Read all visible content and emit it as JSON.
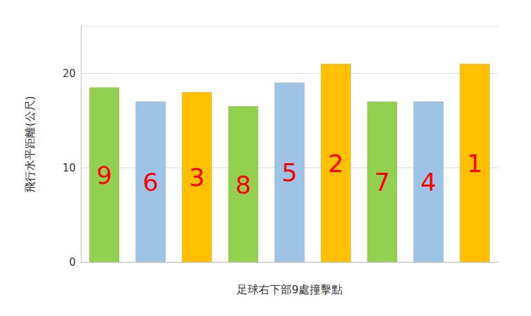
{
  "chart_data": {
    "type": "bar",
    "categories": [
      "9",
      "6",
      "3",
      "8",
      "5",
      "2",
      "7",
      "4",
      "1"
    ],
    "values": [
      18.5,
      17,
      18,
      16.5,
      19,
      21,
      17,
      17,
      21
    ],
    "colors": [
      "#92d050",
      "#9dc3e6",
      "#ffc000",
      "#92d050",
      "#9dc3e6",
      "#ffc000",
      "#92d050",
      "#9dc3e6",
      "#ffc000"
    ],
    "x_label": "足球右下部9處撞擊點",
    "y_label": "飛行水平距離(公尺)",
    "ylim": [
      0,
      25
    ],
    "yticks": [
      0,
      10,
      20
    ],
    "grid": true,
    "tick_labels": "y"
  }
}
